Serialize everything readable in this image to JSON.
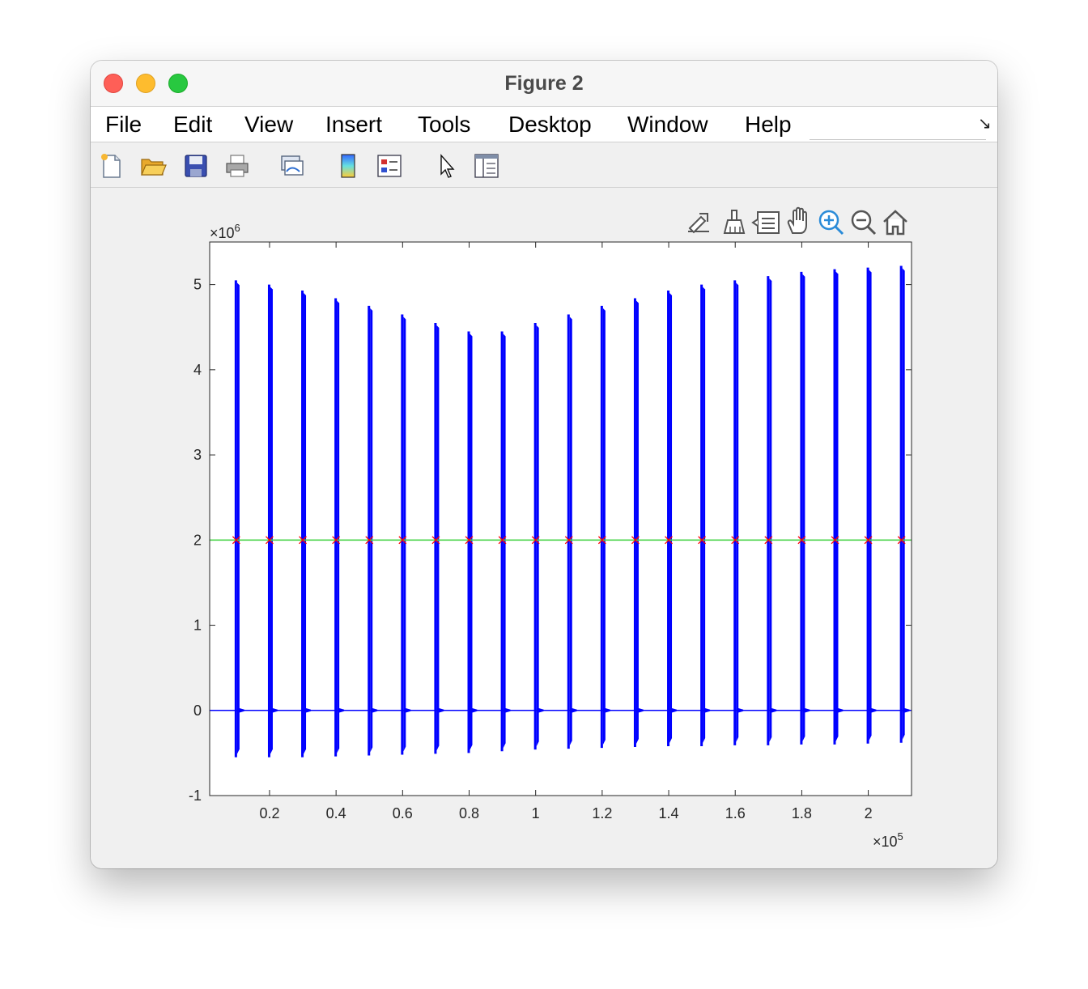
{
  "window": {
    "title": "Figure 2",
    "controls": [
      "close",
      "minimize",
      "maximize"
    ]
  },
  "menubar": {
    "items": [
      "File",
      "Edit",
      "View",
      "Insert",
      "Tools",
      "Desktop",
      "Window",
      "Help"
    ]
  },
  "toolbar": {
    "icons": [
      "new-figure-icon",
      "open-file-icon",
      "save-icon",
      "print-icon",
      "link-plot-icon",
      "insert-colorbar-icon",
      "insert-legend-icon",
      "edit-plot-icon",
      "open-property-inspector-icon"
    ]
  },
  "axes_toolbar": {
    "icons": [
      "export-icon",
      "brush-icon",
      "data-tips-icon",
      "pan-icon",
      "zoom-in-icon",
      "zoom-out-icon",
      "home-icon"
    ]
  },
  "colors": {
    "signal": "#0000ff",
    "threshold": "#4dd54d",
    "markers": "#ff0000"
  },
  "chart_data": {
    "type": "line",
    "title": "",
    "xlabel": "",
    "ylabel": "",
    "x_exponent_label": "×10",
    "x_exponent": "5",
    "y_exponent_label": "×10",
    "y_exponent": "6",
    "xlim": [
      0.02,
      2.13
    ],
    "ylim": [
      -1,
      5.5
    ],
    "xticks": [
      0.2,
      0.4,
      0.6,
      0.8,
      1,
      1.2,
      1.4,
      1.6,
      1.8,
      2
    ],
    "xtick_labels": [
      "0.2",
      "0.4",
      "0.6",
      "0.8",
      "1",
      "1.2",
      "1.4",
      "1.6",
      "1.8",
      "2"
    ],
    "yticks": [
      -1,
      0,
      1,
      2,
      3,
      4,
      5
    ],
    "ytick_labels": [
      "-1",
      "0",
      "1",
      "2",
      "3",
      "4",
      "5"
    ],
    "grid": false,
    "threshold": 2,
    "series": [
      {
        "style": "spikes",
        "x": [
          0.1,
          0.2,
          0.3,
          0.4,
          0.5,
          0.6,
          0.7,
          0.8,
          0.9,
          1.0,
          1.1,
          1.2,
          1.3,
          1.4,
          1.5,
          1.6,
          1.7,
          1.8,
          1.9,
          2.0,
          2.1
        ],
        "peaks": [
          5.05,
          5.0,
          4.93,
          4.84,
          4.75,
          4.65,
          4.55,
          4.45,
          4.45,
          4.55,
          4.65,
          4.75,
          4.84,
          4.93,
          5.0,
          5.05,
          5.1,
          5.15,
          5.18,
          5.2,
          5.22
        ],
        "troughs": [
          -0.55,
          -0.55,
          -0.55,
          -0.54,
          -0.53,
          -0.52,
          -0.51,
          -0.5,
          -0.48,
          -0.46,
          -0.45,
          -0.44,
          -0.43,
          -0.42,
          -0.42,
          -0.41,
          -0.41,
          -0.4,
          -0.4,
          -0.39,
          -0.38
        ],
        "baseline": 0
      },
      {
        "style": "line",
        "y": 2
      },
      {
        "style": "markers",
        "marker": "x",
        "x": [
          0.1,
          0.2,
          0.3,
          0.4,
          0.5,
          0.6,
          0.7,
          0.8,
          0.9,
          1.0,
          1.1,
          1.2,
          1.3,
          1.4,
          1.5,
          1.6,
          1.7,
          1.8,
          1.9,
          2.0,
          2.1
        ],
        "y": 2
      }
    ]
  }
}
